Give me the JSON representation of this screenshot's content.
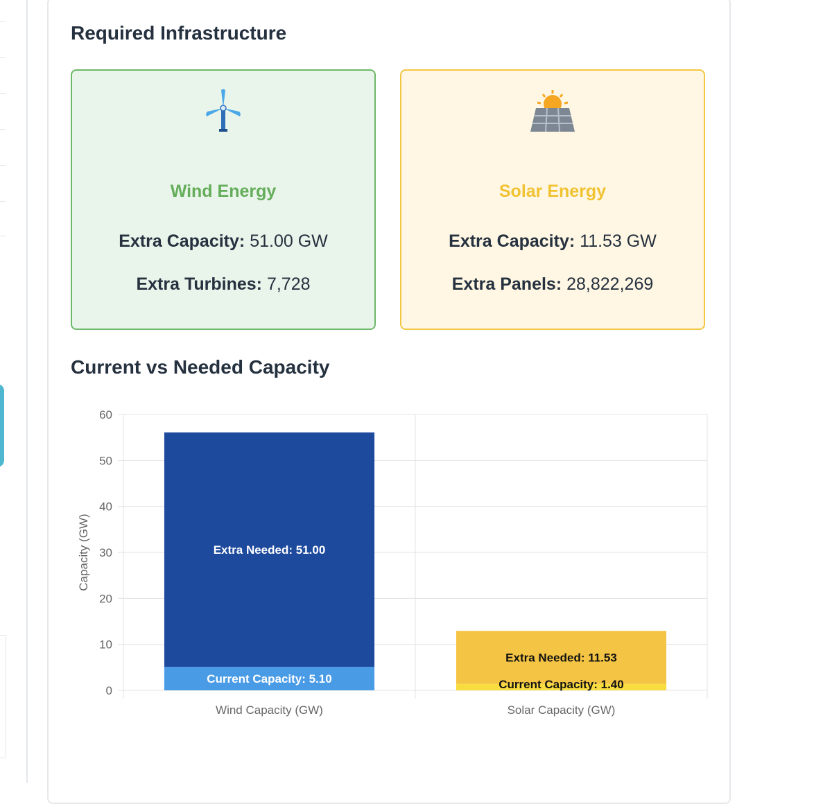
{
  "section1": {
    "title": "Required Infrastructure"
  },
  "wind": {
    "icon": "wind-turbine-icon",
    "title": "Wind Energy",
    "capacity_label": "Extra Capacity:",
    "capacity_value": "51.00 GW",
    "count_label": "Extra Turbines:",
    "count_value": "7,728",
    "color": "#64ad5a"
  },
  "solar": {
    "icon": "solar-panel-icon",
    "title": "Solar Energy",
    "capacity_label": "Extra Capacity:",
    "capacity_value": "11.53 GW",
    "count_label": "Extra Panels:",
    "count_value": "28,822,269",
    "color": "#f1c232"
  },
  "section2": {
    "title": "Current vs Needed Capacity"
  },
  "chart_data": {
    "type": "bar",
    "stacked": true,
    "categories": [
      "Wind Capacity (GW)",
      "Solar Capacity (GW)"
    ],
    "ylabel": "Capacity (GW)",
    "xlabel": "",
    "ylim": [
      0,
      60
    ],
    "yticks": [
      0,
      10,
      20,
      30,
      40,
      50,
      60
    ],
    "grid": true,
    "segments": [
      {
        "category": "Wind Capacity (GW)",
        "kind": "current",
        "value": 5.1,
        "label": "Current Capacity: 5.10",
        "color": "#4a9be6",
        "text_color": "#ffffff"
      },
      {
        "category": "Wind Capacity (GW)",
        "kind": "extra",
        "value": 51.0,
        "label": "Extra Needed: 51.00",
        "color": "#1e4a9e",
        "text_color": "#ffffff"
      },
      {
        "category": "Solar Capacity (GW)",
        "kind": "current",
        "value": 1.4,
        "label": "Current Capacity: 1.40",
        "color": "#f9dc3f",
        "text_color": "#111111"
      },
      {
        "category": "Solar Capacity (GW)",
        "kind": "extra",
        "value": 11.53,
        "label": "Extra Needed: 11.53",
        "color": "#f4c444",
        "text_color": "#111111"
      }
    ]
  }
}
